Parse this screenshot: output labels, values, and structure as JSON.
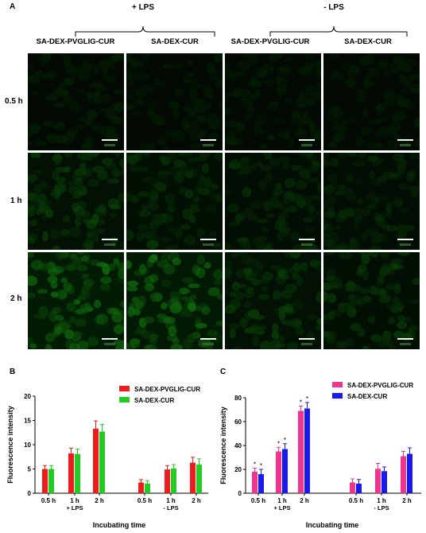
{
  "panel_a": {
    "letter": "A",
    "groups": [
      "+ LPS",
      "- LPS"
    ],
    "columns": [
      "SA-DEX-PVGLIG-CUR",
      "SA-DEX-CUR",
      "SA-DEX-PVGLIG-CUR",
      "SA-DEX-CUR"
    ],
    "rows": [
      "0.5 h",
      "1 h",
      "2 h"
    ],
    "brightness": [
      [
        0.06,
        0.04,
        0.05,
        0.04
      ],
      [
        0.22,
        0.17,
        0.14,
        0.13
      ],
      [
        0.48,
        0.44,
        0.22,
        0.2
      ]
    ]
  },
  "chart_data": [
    {
      "type": "bar",
      "letter": "B",
      "ylabel": "Fluorescence intensity",
      "xlabel": "Incubating time",
      "ylim": [
        0,
        20
      ],
      "yticks": [
        "0",
        "5",
        "10",
        "15",
        "20"
      ],
      "categories": [
        "0.5 h",
        "1 h",
        "2 h",
        "0.5 h",
        "1 h",
        "2 h"
      ],
      "category_sublabels": [
        "",
        "+ LPS",
        "",
        "",
        "- LPS",
        ""
      ],
      "legend_position": "top-right",
      "series": [
        {
          "name": "SA-DEX-PVGLIG-CUR",
          "color": "#ee1c1c",
          "values": [
            5.0,
            8.2,
            13.3,
            2.2,
            4.9,
            6.3
          ],
          "errors": [
            0.7,
            1.1,
            1.6,
            0.6,
            0.8,
            1.1
          ]
        },
        {
          "name": "SA-DEX-CUR",
          "color": "#22cc22",
          "values": [
            5.0,
            8.1,
            12.7,
            2.0,
            5.1,
            5.9
          ],
          "errors": [
            0.7,
            1.0,
            1.5,
            0.6,
            0.8,
            1.2
          ]
        }
      ]
    },
    {
      "type": "bar",
      "letter": "C",
      "ylabel": "Fluorescence intensity",
      "xlabel": "Incubating time",
      "ylim": [
        0,
        80
      ],
      "yticks": [
        "0",
        "20",
        "40",
        "60",
        "80"
      ],
      "categories": [
        "0.5 h",
        "1 h",
        "2 h",
        "0.5 h",
        "1 h",
        "2 h"
      ],
      "category_sublabels": [
        "",
        "+ LPS",
        "",
        "",
        "- LPS",
        ""
      ],
      "significance": "*",
      "legend_position": "top-right",
      "series": [
        {
          "name": "SA-DEX-PVGLIG-CUR",
          "color": "#f0348f",
          "values": [
            18,
            35,
            69,
            9,
            20.5,
            31
          ],
          "errors": [
            3,
            3.5,
            4,
            3,
            4.5,
            4
          ],
          "sig": [
            true,
            true,
            true,
            false,
            false,
            false
          ]
        },
        {
          "name": "SA-DEX-CUR",
          "color": "#1a1aee",
          "values": [
            16,
            37,
            71,
            8,
            18.5,
            33
          ],
          "errors": [
            4,
            4.5,
            5,
            3.5,
            3.5,
            5
          ],
          "sig": [
            true,
            true,
            true,
            false,
            false,
            false
          ]
        }
      ]
    }
  ]
}
